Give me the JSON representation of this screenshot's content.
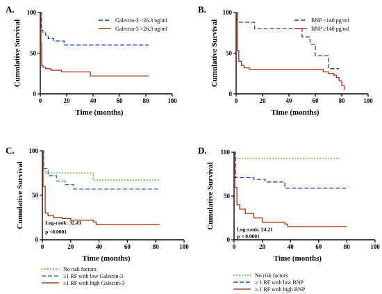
{
  "chart_data": [
    {
      "type": "line",
      "panel_label": "A.",
      "xlabel": "Time (months)",
      "ylabel": "Cumulative Survival",
      "xlim": [
        0,
        100
      ],
      "ylim": [
        0,
        100
      ],
      "xticks": [
        0,
        20,
        40,
        60,
        80,
        100
      ],
      "yticks": [
        0,
        50,
        100
      ],
      "legend_position": "top-right",
      "series": [
        {
          "name": "Galectin-3 <26.3 ng/ml",
          "color": "#1f3fbf",
          "dash": "dashed",
          "x": [
            0,
            1,
            2,
            4,
            6,
            10,
            18,
            82
          ],
          "y": [
            100,
            78,
            75,
            72,
            68,
            65,
            60,
            60
          ]
        },
        {
          "name": "Galectin-3 >26.3 ng/ml",
          "color": "#b03a1a",
          "dash": "solid",
          "x": [
            0,
            0.5,
            1,
            2,
            4,
            8,
            16,
            36,
            38,
            82
          ],
          "y": [
            100,
            62,
            35,
            33,
            31,
            29,
            27,
            27,
            22,
            22
          ]
        }
      ],
      "annotations": []
    },
    {
      "type": "line",
      "panel_label": "B.",
      "xlabel": "Time (months)",
      "ylabel": "Cumulative Survival",
      "xlim": [
        0,
        100
      ],
      "ylim": [
        0,
        100
      ],
      "xticks": [
        0,
        20,
        40,
        60,
        80,
        100
      ],
      "yticks": [
        0,
        50,
        100
      ],
      "legend_position": "top-right",
      "series": [
        {
          "name": "BNP <140 pg/ml",
          "color": "#1f3fbf",
          "dash": "dashed",
          "x": [
            0,
            1,
            14,
            48,
            50,
            56,
            60,
            66,
            70,
            78
          ],
          "y": [
            100,
            88,
            80,
            80,
            70,
            61,
            47,
            47,
            31,
            31
          ]
        },
        {
          "name": "BNP ≥140 pg/ml",
          "color": "#b03a1a",
          "dash": "solid",
          "x": [
            0,
            1,
            2,
            4,
            6,
            10,
            60,
            66,
            70,
            74,
            76,
            78,
            80,
            82
          ],
          "y": [
            100,
            53,
            40,
            35,
            32,
            30,
            30,
            27,
            25,
            23,
            20,
            16,
            10,
            5
          ]
        }
      ],
      "annotations": []
    },
    {
      "type": "line",
      "panel_label": "C.",
      "xlabel": "Time (months)",
      "ylabel": "Cumulative Survival",
      "xlim": [
        0,
        100
      ],
      "ylim": [
        0,
        100
      ],
      "xticks": [
        0,
        20,
        40,
        60,
        80,
        100
      ],
      "yticks": [
        0,
        50,
        100
      ],
      "legend_position": "below",
      "series": [
        {
          "name": "No risk factors",
          "color": "#55bb22",
          "dash": "dotted",
          "x": [
            0,
            1,
            2,
            36,
            83
          ],
          "y": [
            100,
            80,
            75,
            67,
            67
          ]
        },
        {
          "name": "≥1 RF with low Galectin-3",
          "color": "#2d6fd6",
          "dash": "dashed",
          "x": [
            0,
            1,
            4,
            10,
            16,
            22,
            83
          ],
          "y": [
            100,
            80,
            72,
            66,
            62,
            57,
            57
          ]
        },
        {
          "name": "≥1 RF with high Galectin-3",
          "color": "#b03a1a",
          "dash": "solid",
          "x": [
            0,
            0.5,
            2,
            4,
            8,
            14,
            20,
            36,
            38,
            83
          ],
          "y": [
            100,
            60,
            30,
            27,
            25,
            24,
            22,
            20,
            17,
            17
          ]
        }
      ],
      "annotations": [
        {
          "text": "Log-rank: 32.43",
          "x": 2,
          "y": 17
        },
        {
          "text": "p <0.0001",
          "x": 2,
          "y": 7
        }
      ]
    },
    {
      "type": "line",
      "panel_label": "D.",
      "xlabel": "Time (months)",
      "ylabel": "Cumulative Survival",
      "xlim": [
        0,
        100
      ],
      "ylim": [
        0,
        100
      ],
      "xticks": [
        0,
        20,
        40,
        60,
        80,
        100
      ],
      "yticks": [
        0,
        50,
        100
      ],
      "legend_position": "below",
      "series": [
        {
          "name": "No risk factors",
          "color": "#55bb22",
          "dash": "dotted",
          "x": [
            0,
            1,
            75
          ],
          "y": [
            100,
            93,
            93
          ]
        },
        {
          "name": "≥ 1 RF with low BNP",
          "color": "#1f3fbf",
          "dash": "dashed",
          "x": [
            0,
            1,
            14,
            22,
            36,
            80
          ],
          "y": [
            100,
            71,
            69,
            66,
            59,
            59
          ]
        },
        {
          "name": "≥ 1 RF with high BNP",
          "color": "#b03a1a",
          "dash": "solid",
          "x": [
            0,
            0.5,
            2,
            4,
            8,
            14,
            20,
            36,
            38,
            80
          ],
          "y": [
            100,
            60,
            40,
            35,
            30,
            25,
            20,
            18,
            15,
            15
          ]
        }
      ],
      "annotations": [
        {
          "text": "Log-rank: 24.21",
          "x": 2,
          "y": 10
        },
        {
          "text": "p < 0.0001",
          "x": 2,
          "y": 2
        }
      ]
    }
  ]
}
